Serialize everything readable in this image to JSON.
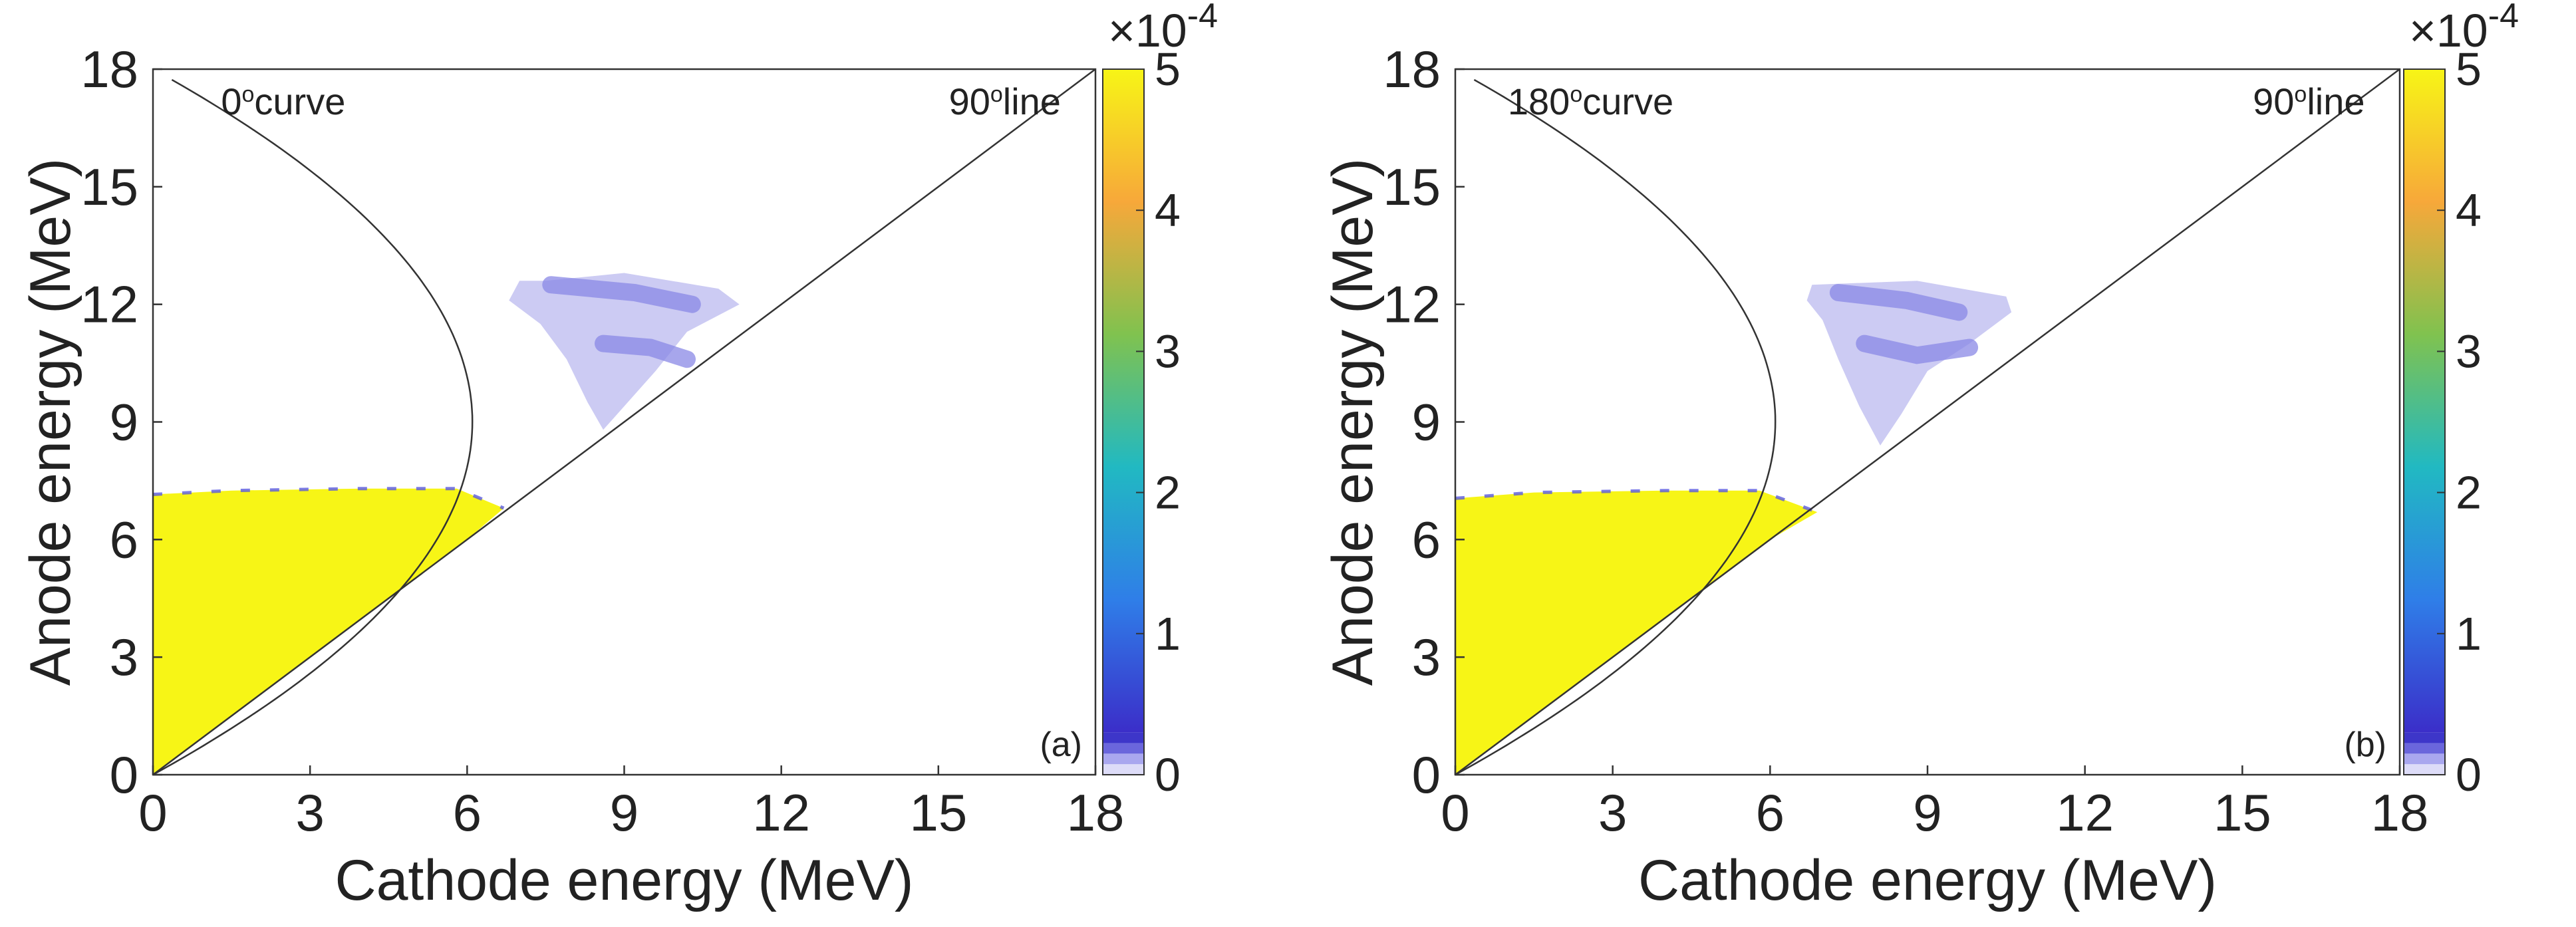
{
  "chart_data": [
    {
      "type": "heatmap",
      "panel_label": "(a)",
      "xlabel": "Cathode energy (MeV)",
      "ylabel": "Anode energy (MeV)",
      "xlim": [
        0,
        18
      ],
      "ylim": [
        0,
        18
      ],
      "xticks": [
        "0",
        "3",
        "6",
        "9",
        "12",
        "15",
        "18"
      ],
      "yticks": [
        "0",
        "3",
        "6",
        "9",
        "12",
        "15",
        "18"
      ],
      "annotations": [
        {
          "text": "0°curve",
          "at": [
            1.3,
            17.2
          ]
        },
        {
          "text": "90°line",
          "at": [
            15.2,
            17.2
          ]
        }
      ],
      "curve_vertex_x": 6.1,
      "curve_vertex_y": 9.0,
      "regions": [
        {
          "level": "high",
          "color": "#f7f516",
          "poly": [
            [
              0,
              0
            ],
            [
              0,
              7.15
            ],
            [
              1.5,
              7.25
            ],
            [
              4.0,
              7.3
            ],
            [
              5.8,
              7.3
            ],
            [
              6.7,
              6.8
            ],
            [
              6.0,
              6.0
            ],
            [
              4.5,
              4.5
            ],
            [
              3.0,
              3.0
            ],
            [
              1.5,
              1.5
            ],
            [
              0.4,
              0.4
            ]
          ]
        },
        {
          "level": "low",
          "color": "#cccbf3",
          "poly": [
            [
              7.5,
              12.6
            ],
            [
              9.0,
              12.8
            ],
            [
              10.8,
              12.4
            ],
            [
              11.2,
              12.0
            ],
            [
              10.2,
              11.3
            ],
            [
              9.6,
              10.3
            ],
            [
              8.8,
              9.1
            ],
            [
              8.6,
              8.8
            ],
            [
              8.3,
              9.5
            ],
            [
              7.9,
              10.6
            ],
            [
              7.4,
              11.5
            ],
            [
              6.8,
              12.1
            ],
            [
              7.0,
              12.6
            ]
          ]
        }
      ],
      "colorbar": {
        "min": 0,
        "max": 5,
        "ticks": [
          "0",
          "1",
          "2",
          "3",
          "4",
          "5"
        ],
        "exponent": "×10-4"
      }
    },
    {
      "type": "heatmap",
      "panel_label": "(b)",
      "xlabel": "Cathode energy (MeV)",
      "ylabel": "Anode energy (MeV)",
      "xlim": [
        0,
        18
      ],
      "ylim": [
        0,
        18
      ],
      "xticks": [
        "0",
        "3",
        "6",
        "9",
        "12",
        "15",
        "18"
      ],
      "yticks": [
        "0",
        "3",
        "6",
        "9",
        "12",
        "15",
        "18"
      ],
      "annotations": [
        {
          "text": "180°curve",
          "at": [
            1.0,
            17.2
          ]
        },
        {
          "text": "90°line",
          "at": [
            15.2,
            17.2
          ]
        }
      ],
      "curve_vertex_x": 6.1,
      "curve_vertex_y": 9.0,
      "regions": [
        {
          "level": "high",
          "color": "#f7f516",
          "poly": [
            [
              0,
              0
            ],
            [
              0,
              7.05
            ],
            [
              1.5,
              7.2
            ],
            [
              4.0,
              7.25
            ],
            [
              5.8,
              7.25
            ],
            [
              6.9,
              6.7
            ],
            [
              6.0,
              6.0
            ],
            [
              4.5,
              4.5
            ],
            [
              3.0,
              3.0
            ],
            [
              1.5,
              1.5
            ],
            [
              0.4,
              0.4
            ]
          ]
        },
        {
          "level": "low",
          "color": "#cccbf3",
          "poly": [
            [
              6.8,
              12.5
            ],
            [
              8.8,
              12.6
            ],
            [
              10.5,
              12.2
            ],
            [
              10.6,
              11.8
            ],
            [
              9.8,
              11.0
            ],
            [
              9.0,
              10.3
            ],
            [
              8.5,
              9.2
            ],
            [
              8.1,
              8.4
            ],
            [
              7.7,
              9.4
            ],
            [
              7.3,
              10.6
            ],
            [
              7.0,
              11.6
            ],
            [
              6.7,
              12.1
            ]
          ]
        }
      ],
      "colorbar": {
        "min": 0,
        "max": 5,
        "ticks": [
          "0",
          "1",
          "2",
          "3",
          "4",
          "5"
        ],
        "exponent": "×10-4"
      }
    }
  ]
}
